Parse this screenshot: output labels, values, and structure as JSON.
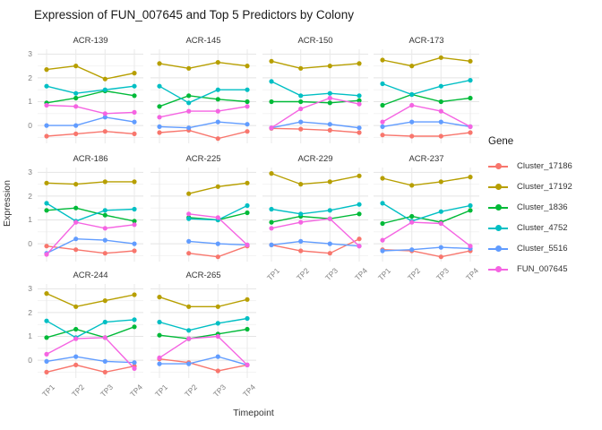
{
  "title": "Expression of FUN_007645 and Top 5 Predictors by Colony",
  "axes": {
    "x_title": "Timepoint",
    "y_title": "Expression",
    "x_ticks": [
      "TP1",
      "TP2",
      "TP3",
      "TP4"
    ],
    "y_ticks": [
      "3",
      "2",
      "1",
      "0"
    ]
  },
  "legend": {
    "title": "Gene",
    "entries": [
      {
        "label": "Cluster_17186",
        "color": "#F8766D"
      },
      {
        "label": "Cluster_17192",
        "color": "#B79F00"
      },
      {
        "label": "Cluster_1836",
        "color": "#00BA38"
      },
      {
        "label": "Cluster_4752",
        "color": "#00BFC4"
      },
      {
        "label": "Cluster_5516",
        "color": "#619CFF"
      },
      {
        "label": "FUN_007645",
        "color": "#F564E2"
      }
    ]
  },
  "chart_data": {
    "type": "line",
    "x": [
      "TP1",
      "TP2",
      "TP3",
      "TP4"
    ],
    "ylim": [
      -0.75,
      3.2
    ],
    "y_gridlines_major": [
      0,
      1,
      2,
      3
    ],
    "y_gridlines_minor": [
      -0.5,
      0.5,
      1.5,
      2.5
    ],
    "legend_position": "right",
    "facets": [
      {
        "name": "ACR-139",
        "series": [
          {
            "name": "Cluster_17186",
            "values": [
              -0.45,
              -0.35,
              -0.25,
              -0.35
            ]
          },
          {
            "name": "Cluster_17192",
            "values": [
              2.35,
              2.5,
              1.95,
              2.2
            ]
          },
          {
            "name": "Cluster_1836",
            "values": [
              0.95,
              1.15,
              1.45,
              1.25
            ]
          },
          {
            "name": "Cluster_4752",
            "values": [
              1.65,
              1.35,
              1.5,
              1.65
            ]
          },
          {
            "name": "Cluster_5516",
            "values": [
              0.0,
              0.0,
              0.35,
              0.15
            ]
          },
          {
            "name": "FUN_007645",
            "values": [
              0.85,
              0.8,
              0.5,
              0.55
            ]
          }
        ]
      },
      {
        "name": "ACR-145",
        "series": [
          {
            "name": "Cluster_17186",
            "values": [
              -0.3,
              -0.2,
              -0.55,
              -0.25
            ]
          },
          {
            "name": "Cluster_17192",
            "values": [
              2.6,
              2.4,
              2.65,
              2.5
            ]
          },
          {
            "name": "Cluster_1836",
            "values": [
              0.8,
              1.25,
              1.1,
              1.0
            ]
          },
          {
            "name": "Cluster_4752",
            "values": [
              1.65,
              0.95,
              1.5,
              1.5
            ]
          },
          {
            "name": "Cluster_5516",
            "values": [
              -0.05,
              -0.1,
              0.15,
              0.05
            ]
          },
          {
            "name": "FUN_007645",
            "values": [
              0.35,
              0.6,
              0.6,
              0.8
            ]
          }
        ]
      },
      {
        "name": "ACR-150",
        "series": [
          {
            "name": "Cluster_17186",
            "values": [
              -0.12,
              -0.15,
              -0.2,
              -0.3
            ]
          },
          {
            "name": "Cluster_17192",
            "values": [
              2.7,
              2.4,
              2.5,
              2.6
            ]
          },
          {
            "name": "Cluster_1836",
            "values": [
              1.0,
              1.0,
              0.95,
              1.05
            ]
          },
          {
            "name": "Cluster_4752",
            "values": [
              1.85,
              1.25,
              1.35,
              1.25
            ]
          },
          {
            "name": "Cluster_5516",
            "values": [
              -0.1,
              0.15,
              0.05,
              -0.1
            ]
          },
          {
            "name": "FUN_007645",
            "values": [
              -0.1,
              0.7,
              1.15,
              0.9
            ]
          }
        ]
      },
      {
        "name": "ACR-173",
        "series": [
          {
            "name": "Cluster_17186",
            "values": [
              -0.4,
              -0.45,
              -0.45,
              -0.3
            ]
          },
          {
            "name": "Cluster_17192",
            "values": [
              2.75,
              2.5,
              2.85,
              2.7
            ]
          },
          {
            "name": "Cluster_1836",
            "values": [
              0.85,
              1.3,
              1.0,
              1.15
            ]
          },
          {
            "name": "Cluster_4752",
            "values": [
              1.75,
              1.3,
              1.65,
              1.9
            ]
          },
          {
            "name": "Cluster_5516",
            "values": [
              -0.05,
              0.15,
              0.15,
              -0.05
            ]
          },
          {
            "name": "FUN_007645",
            "values": [
              0.15,
              0.85,
              0.6,
              -0.05
            ]
          }
        ]
      },
      {
        "name": "ACR-186",
        "series": [
          {
            "name": "Cluster_17186",
            "values": [
              -0.1,
              -0.25,
              -0.4,
              -0.3
            ]
          },
          {
            "name": "Cluster_17192",
            "values": [
              2.55,
              2.5,
              2.6,
              2.6
            ]
          },
          {
            "name": "Cluster_1836",
            "values": [
              1.4,
              1.5,
              1.2,
              0.95
            ]
          },
          {
            "name": "Cluster_4752",
            "values": [
              1.7,
              0.95,
              1.4,
              1.45
            ]
          },
          {
            "name": "Cluster_5516",
            "values": [
              -0.4,
              0.2,
              0.15,
              0.0
            ]
          },
          {
            "name": "FUN_007645",
            "values": [
              -0.45,
              0.9,
              0.65,
              0.8
            ]
          }
        ]
      },
      {
        "name": "ACR-225",
        "series": [
          {
            "name": "Cluster_17186",
            "values": [
              null,
              -0.4,
              -0.55,
              -0.1
            ]
          },
          {
            "name": "Cluster_17192",
            "values": [
              null,
              2.1,
              2.4,
              2.55
            ]
          },
          {
            "name": "Cluster_1836",
            "values": [
              null,
              1.1,
              1.0,
              1.3
            ]
          },
          {
            "name": "Cluster_4752",
            "values": [
              null,
              1.05,
              1.0,
              1.6
            ]
          },
          {
            "name": "Cluster_5516",
            "values": [
              null,
              0.1,
              0.0,
              -0.05
            ]
          },
          {
            "name": "FUN_007645",
            "values": [
              null,
              1.25,
              1.1,
              -0.05
            ]
          }
        ]
      },
      {
        "name": "ACR-229",
        "series": [
          {
            "name": "Cluster_17186",
            "values": [
              -0.05,
              -0.3,
              -0.4,
              0.2
            ]
          },
          {
            "name": "Cluster_17192",
            "values": [
              2.95,
              2.5,
              2.6,
              2.85
            ]
          },
          {
            "name": "Cluster_1836",
            "values": [
              0.9,
              1.15,
              1.05,
              1.25
            ]
          },
          {
            "name": "Cluster_4752",
            "values": [
              1.45,
              1.25,
              1.4,
              1.65
            ]
          },
          {
            "name": "Cluster_5516",
            "values": [
              -0.05,
              0.1,
              0.0,
              -0.1
            ]
          },
          {
            "name": "FUN_007645",
            "values": [
              0.65,
              0.9,
              1.05,
              -0.1
            ]
          }
        ]
      },
      {
        "name": "ACR-237",
        "series": [
          {
            "name": "Cluster_17186",
            "values": [
              -0.25,
              -0.3,
              -0.55,
              -0.3
            ]
          },
          {
            "name": "Cluster_17192",
            "values": [
              2.75,
              2.45,
              2.6,
              2.8
            ]
          },
          {
            "name": "Cluster_1836",
            "values": [
              0.85,
              1.15,
              0.9,
              1.4
            ]
          },
          {
            "name": "Cluster_4752",
            "values": [
              1.7,
              0.95,
              1.35,
              1.6
            ]
          },
          {
            "name": "Cluster_5516",
            "values": [
              -0.3,
              -0.25,
              -0.15,
              -0.2
            ]
          },
          {
            "name": "FUN_007645",
            "values": [
              0.15,
              0.9,
              0.85,
              -0.1
            ]
          }
        ]
      },
      {
        "name": "ACR-244",
        "series": [
          {
            "name": "Cluster_17186",
            "values": [
              -0.5,
              -0.2,
              -0.5,
              -0.25
            ]
          },
          {
            "name": "Cluster_17192",
            "values": [
              2.8,
              2.25,
              2.5,
              2.75
            ]
          },
          {
            "name": "Cluster_1836",
            "values": [
              0.95,
              1.3,
              0.95,
              1.4
            ]
          },
          {
            "name": "Cluster_4752",
            "values": [
              1.65,
              0.95,
              1.6,
              1.7
            ]
          },
          {
            "name": "Cluster_5516",
            "values": [
              -0.05,
              0.15,
              -0.05,
              -0.1
            ]
          },
          {
            "name": "FUN_007645",
            "values": [
              0.25,
              0.9,
              0.95,
              -0.35
            ]
          }
        ]
      },
      {
        "name": "ACR-265",
        "series": [
          {
            "name": "Cluster_17186",
            "values": [
              0.05,
              -0.1,
              -0.45,
              -0.2
            ]
          },
          {
            "name": "Cluster_17192",
            "values": [
              2.65,
              2.25,
              2.25,
              2.55
            ]
          },
          {
            "name": "Cluster_1836",
            "values": [
              1.05,
              0.9,
              1.1,
              1.3
            ]
          },
          {
            "name": "Cluster_4752",
            "values": [
              1.6,
              1.25,
              1.55,
              1.75
            ]
          },
          {
            "name": "Cluster_5516",
            "values": [
              -0.15,
              -0.15,
              0.15,
              -0.2
            ]
          },
          {
            "name": "FUN_007645",
            "values": [
              0.1,
              0.9,
              1.0,
              -0.2
            ]
          }
        ]
      }
    ]
  }
}
